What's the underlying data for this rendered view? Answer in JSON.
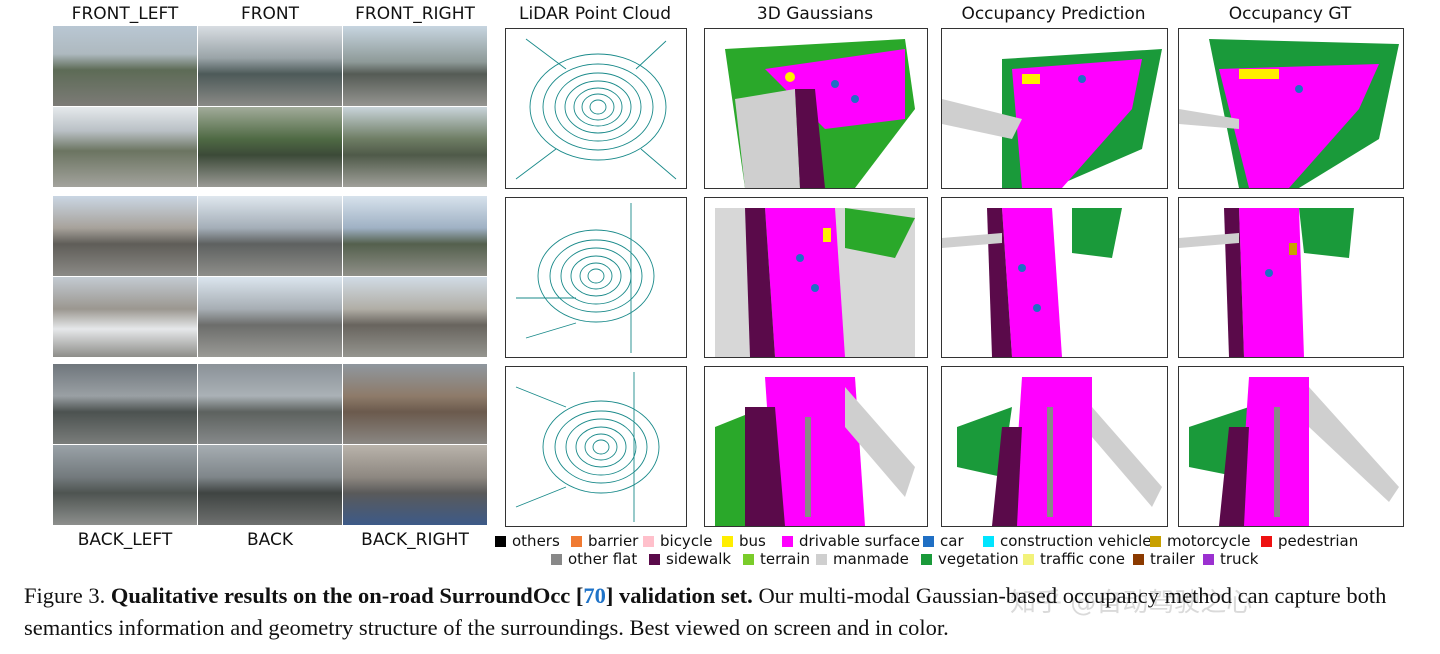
{
  "columns": {
    "cam_front_left": "FRONT_LEFT",
    "cam_front": "FRONT",
    "cam_front_right": "FRONT_RIGHT",
    "lidar": "LiDAR Point Cloud",
    "gaussians": "3D Gaussians",
    "occ_pred": "Occupancy Prediction",
    "occ_gt": "Occupancy GT"
  },
  "bottom_labels": {
    "back_left": "BACK_LEFT",
    "back": "BACK",
    "back_right": "BACK_RIGHT"
  },
  "legend": [
    {
      "label": "others",
      "color": "#000000"
    },
    {
      "label": "barrier",
      "color": "#f07a32"
    },
    {
      "label": "bicycle",
      "color": "#ffc0cb"
    },
    {
      "label": "bus",
      "color": "#ffee00"
    },
    {
      "label": "drivable surface",
      "color": "#ff00ff"
    },
    {
      "label": "car",
      "color": "#1f6fc4"
    },
    {
      "label": "construction vehicle",
      "color": "#00e5ff"
    },
    {
      "label": "motorcycle",
      "color": "#c8a000"
    },
    {
      "label": "pedestrian",
      "color": "#ee1111"
    },
    {
      "label": "other flat",
      "color": "#888888"
    },
    {
      "label": "sidewalk",
      "color": "#5a0a4a"
    },
    {
      "label": "terrain",
      "color": "#7acc2a"
    },
    {
      "label": "manmade",
      "color": "#cfcfcf"
    },
    {
      "label": "vegetation",
      "color": "#1a9a3a"
    },
    {
      "label": "traffic cone",
      "color": "#f2f27a"
    },
    {
      "label": "trailer",
      "color": "#8b3a00"
    },
    {
      "label": "truck",
      "color": "#9b30d0"
    }
  ],
  "caption": {
    "figure_label": "Figure 3.",
    "bold_part1": "Qualitative results on the on-road SurroundOcc [",
    "ref_number": "70",
    "bold_part2": "] validation set.",
    "body": " Our multi-modal Gaussian-based occupancy method can capture both semantics information and geometry structure of the surroundings. Best viewed on screen and in color."
  },
  "watermark": "知乎 @自动驾驶之心"
}
